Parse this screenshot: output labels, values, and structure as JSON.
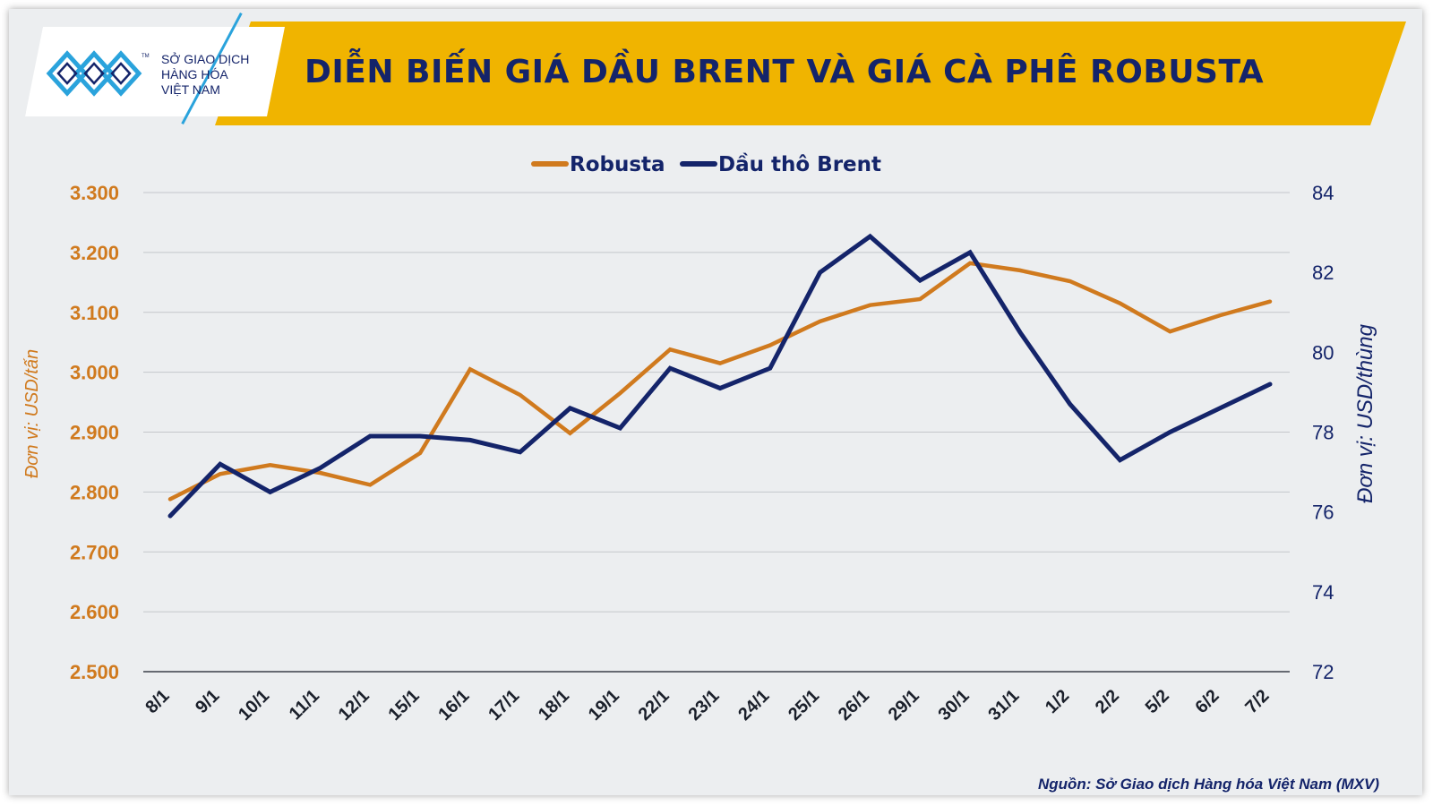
{
  "header": {
    "title": "DIỄN BIẾN GIÁ DẦU BRENT VÀ GIÁ CÀ PHÊ ROBUSTA",
    "logo_line1": "SỞ GIAO DỊCH",
    "logo_line2": "HÀNG HÓA",
    "logo_line3": "VIỆT NAM",
    "logo_tm": "TM"
  },
  "source": "Nguồn: Sở Giao dịch Hàng hóa Việt Nam (MXV)",
  "colors": {
    "robusta": "#d07a1e",
    "brent": "#14246a",
    "banner": "#f0b400",
    "grid": "#c4c7cb"
  },
  "chart_data": {
    "type": "line",
    "categories": [
      "8/1",
      "9/1",
      "10/1",
      "11/1",
      "12/1",
      "15/1",
      "16/1",
      "17/1",
      "18/1",
      "19/1",
      "22/1",
      "23/1",
      "24/1",
      "25/1",
      "26/1",
      "29/1",
      "30/1",
      "31/1",
      "1/2",
      "2/2",
      "5/2",
      "6/2",
      "7/2"
    ],
    "series": [
      {
        "name": "Robusta",
        "axis": "left",
        "values": [
          2788,
          2830,
          2845,
          2832,
          2812,
          2865,
          3005,
          2962,
          2898,
          2965,
          3038,
          3015,
          3045,
          3085,
          3112,
          3122,
          3182,
          3170,
          3152,
          3115,
          3068,
          3095,
          3118
        ]
      },
      {
        "name": "Dầu thô Brent",
        "axis": "right",
        "values": [
          75.9,
          77.2,
          76.5,
          77.1,
          77.9,
          77.9,
          77.8,
          77.5,
          78.6,
          78.1,
          79.6,
          79.1,
          79.6,
          82.0,
          82.9,
          81.8,
          82.5,
          80.5,
          78.7,
          77.3,
          78.0,
          78.6,
          79.2
        ]
      }
    ],
    "y_left": {
      "label": "Đơn vị: USD/tấn",
      "min": 2500,
      "max": 3300,
      "ticks": [
        "2.500",
        "2.600",
        "2.700",
        "2.800",
        "2.900",
        "3.000",
        "3.100",
        "3.200",
        "3.300"
      ]
    },
    "y_right": {
      "label": "Đơn vị: USD/thùng",
      "min": 72,
      "max": 84,
      "ticks": [
        "72",
        "74",
        "76",
        "78",
        "80",
        "82",
        "84"
      ]
    },
    "legend_position": "top-center",
    "grid": true
  }
}
